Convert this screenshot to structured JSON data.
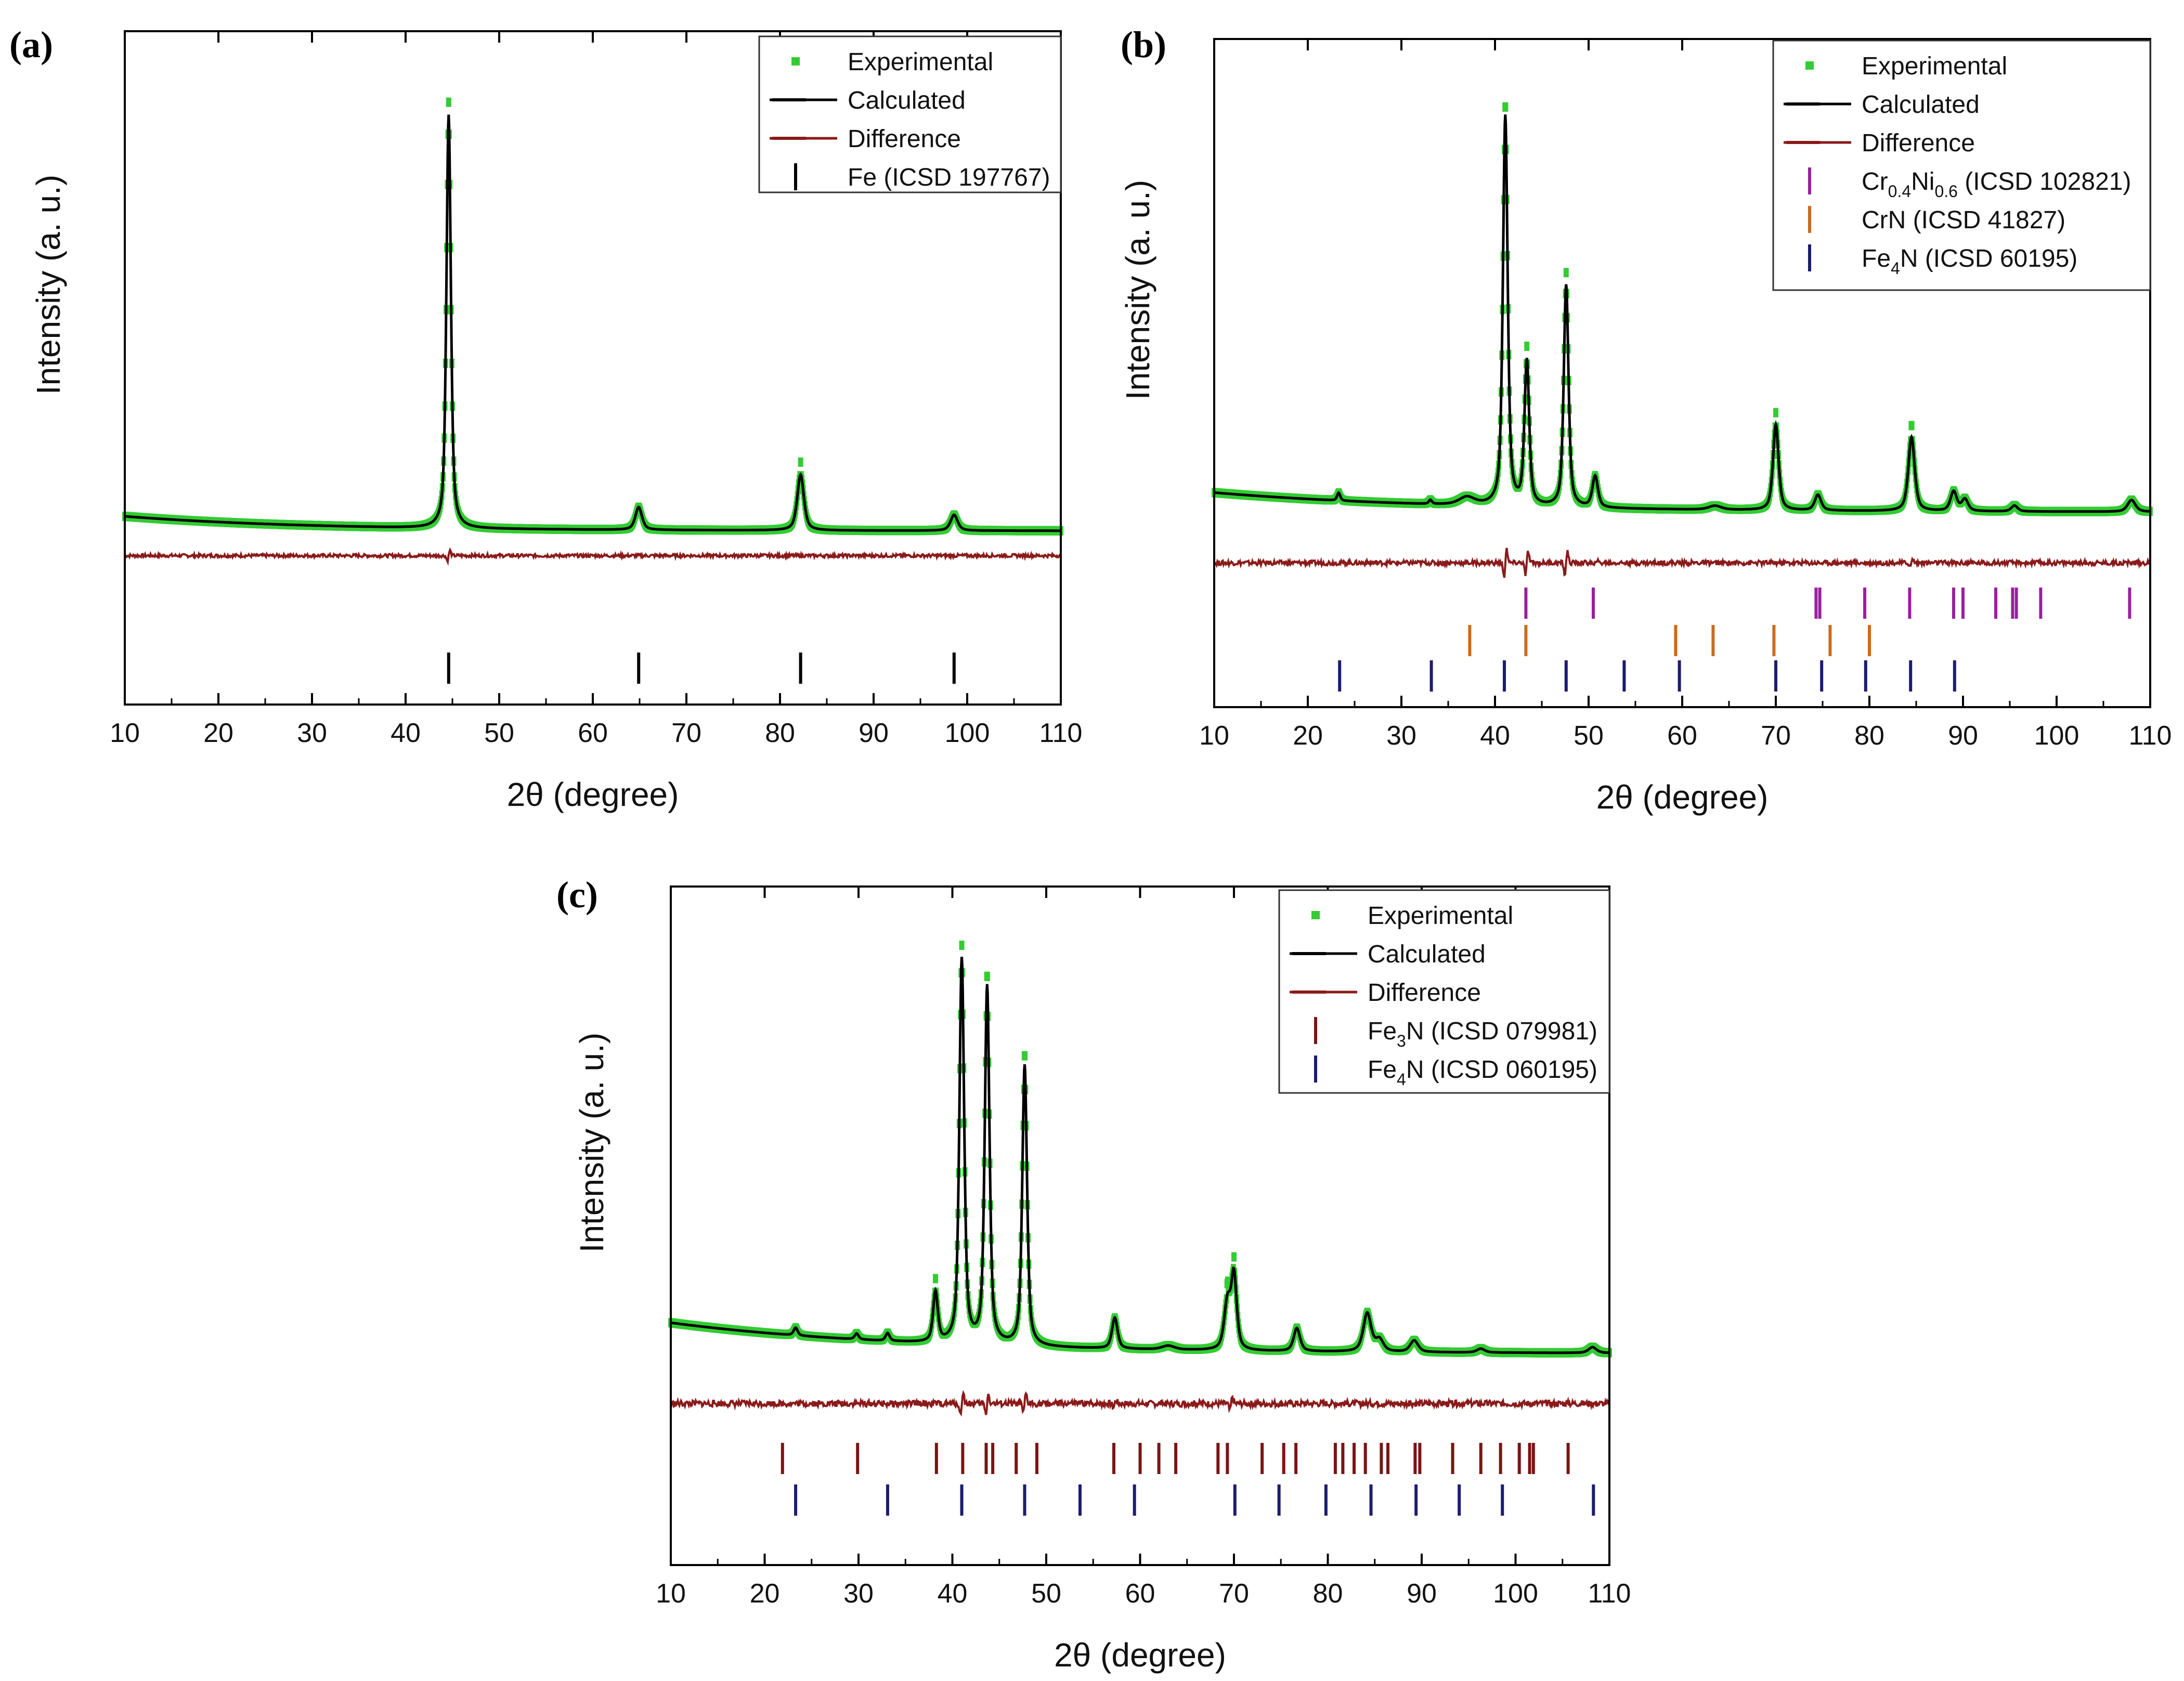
{
  "figure": {
    "background": "#ffffff",
    "colors": {
      "experimental": "#33cc33",
      "calculated": "#000000",
      "difference": "#8b1a1a",
      "fe_tick": "#000000",
      "crni_tick": "#9b1fa0",
      "crn_tick": "#cc6a1a",
      "fe4n_tick": "#1c1c6e",
      "fe3n_tick": "#7a1414"
    }
  },
  "chart_data": [
    {
      "type": "line",
      "panel": "(a)",
      "xlabel": "2θ (degree)",
      "ylabel": "Intensity (a. u.)",
      "xlim": [
        10,
        110
      ],
      "xticks": [
        "10",
        "20",
        "30",
        "40",
        "50",
        "60",
        "70",
        "80",
        "90",
        "100",
        "110"
      ],
      "ylim": [
        -0.42,
        1.12
      ],
      "legend_position": "top-right",
      "pattern": {
        "background": {
          "start": 0.035,
          "end": 0.0,
          "decay": 20
        },
        "peaks": [
          {
            "pos": 44.6,
            "height": 1.0,
            "width": 0.28
          },
          {
            "pos": 64.9,
            "height": 0.055,
            "width": 0.42
          },
          {
            "pos": 82.2,
            "height": 0.135,
            "width": 0.42
          },
          {
            "pos": 98.6,
            "height": 0.038,
            "width": 0.45
          }
        ],
        "exp_overshoot": 0.03,
        "difference_offset": -0.06,
        "difference_noise": 0.004,
        "difference_spikes": [
          {
            "pos": 44.6,
            "amp": 0.02
          }
        ]
      },
      "series": [
        {
          "name": "Experimental",
          "style": "dots",
          "color": "#33cc33"
        },
        {
          "name": "Calculated",
          "style": "line",
          "color": "#000000"
        },
        {
          "name": "Difference",
          "style": "line",
          "color": "#8b1a1a"
        }
      ],
      "reflections": [
        {
          "name": "Fe (ICSD 197767)",
          "color": "#000000",
          "positions": [
            44.6,
            64.9,
            82.2,
            98.6
          ]
        }
      ]
    },
    {
      "type": "line",
      "panel": "(b)",
      "xlabel": "2θ (degree)",
      "ylabel": "Intensity (a. u.)",
      "xlim": [
        10,
        110
      ],
      "xticks": [
        "10",
        "20",
        "30",
        "40",
        "50",
        "60",
        "70",
        "80",
        "90",
        "100",
        "110"
      ],
      "ylim": [
        -0.5,
        1.12
      ],
      "legend_position": "top-right",
      "pattern": {
        "background": {
          "start": 0.05,
          "end": 0.0,
          "decay": 25
        },
        "peaks": [
          {
            "pos": 23.3,
            "height": 0.02,
            "width": 0.2
          },
          {
            "pos": 33.1,
            "height": 0.01,
            "width": 0.2
          },
          {
            "pos": 37.0,
            "height": 0.02,
            "width": 1.0
          },
          {
            "pos": 41.1,
            "height": 1.0,
            "width": 0.3
          },
          {
            "pos": 43.4,
            "height": 0.37,
            "width": 0.3
          },
          {
            "pos": 47.6,
            "height": 0.57,
            "width": 0.3
          },
          {
            "pos": 50.7,
            "height": 0.08,
            "width": 0.35
          },
          {
            "pos": 63.5,
            "height": 0.01,
            "width": 0.8
          },
          {
            "pos": 70.0,
            "height": 0.22,
            "width": 0.35
          },
          {
            "pos": 74.5,
            "height": 0.04,
            "width": 0.4
          },
          {
            "pos": 84.5,
            "height": 0.19,
            "width": 0.4
          },
          {
            "pos": 89.0,
            "height": 0.05,
            "width": 0.4
          },
          {
            "pos": 90.2,
            "height": 0.03,
            "width": 0.4
          },
          {
            "pos": 95.5,
            "height": 0.015,
            "width": 0.4
          },
          {
            "pos": 108.0,
            "height": 0.03,
            "width": 0.5
          }
        ],
        "exp_overshoot": 0.03,
        "difference_offset": -0.13,
        "difference_noise": 0.006,
        "difference_spikes": [
          {
            "pos": 41.1,
            "amp": 0.06
          },
          {
            "pos": 43.4,
            "amp": 0.05
          },
          {
            "pos": 47.6,
            "amp": 0.05
          },
          {
            "pos": 50.7,
            "amp": 0.015
          },
          {
            "pos": 84.5,
            "amp": 0.015
          }
        ]
      },
      "series": [
        {
          "name": "Experimental",
          "style": "dots",
          "color": "#33cc33"
        },
        {
          "name": "Calculated",
          "style": "line",
          "color": "#000000"
        },
        {
          "name": "Difference",
          "style": "line",
          "color": "#8b1a1a"
        }
      ],
      "reflections": [
        {
          "name": "Cr0.4Ni0.6 (ICSD 102821)",
          "label_main": "Cr",
          "label_sub1": "0.4",
          "label_mid": "Ni",
          "label_sub2": "0.6",
          "label_rest": " (ICSD 102821)",
          "color": "#9b1fa0",
          "positions": [
            43.3,
            50.5,
            74.3,
            74.7,
            79.5,
            84.3,
            89.0,
            90.0,
            93.5,
            95.3,
            95.7,
            98.3,
            107.8
          ]
        },
        {
          "name": "CrN (ICSD 41827)",
          "color": "#cc6a1a",
          "positions": [
            37.3,
            43.3,
            59.3,
            63.3,
            69.8,
            75.8,
            80.0
          ]
        },
        {
          "name": "Fe4N (ICSD 60195)",
          "label_main": "Fe",
          "label_sub1": "4",
          "label_rest": "N (ICSD 60195)",
          "color": "#1c1c6e",
          "positions": [
            23.4,
            33.2,
            41.0,
            47.6,
            53.8,
            59.7,
            70.0,
            74.9,
            79.6,
            84.4,
            89.1
          ]
        }
      ]
    },
    {
      "type": "line",
      "panel": "(c)",
      "xlabel": "2θ (degree)",
      "ylabel": "Intensity (a. u.)",
      "xlim": [
        10,
        110
      ],
      "xticks": [
        "10",
        "20",
        "30",
        "40",
        "50",
        "60",
        "70",
        "80",
        "90",
        "100",
        "110"
      ],
      "ylim": [
        -0.55,
        1.12
      ],
      "legend_position": "top-right",
      "pattern": {
        "background": {
          "start": 0.08,
          "end": 0.0,
          "decay": 25
        },
        "peaks": [
          {
            "pos": 23.3,
            "height": 0.02,
            "width": 0.25
          },
          {
            "pos": 29.8,
            "height": 0.015,
            "width": 0.25
          },
          {
            "pos": 33.1,
            "height": 0.02,
            "width": 0.25
          },
          {
            "pos": 38.2,
            "height": 0.13,
            "width": 0.3
          },
          {
            "pos": 41.0,
            "height": 1.0,
            "width": 0.3
          },
          {
            "pos": 43.7,
            "height": 0.93,
            "width": 0.3
          },
          {
            "pos": 47.7,
            "height": 0.73,
            "width": 0.3
          },
          {
            "pos": 57.3,
            "height": 0.08,
            "width": 0.35
          },
          {
            "pos": 63.0,
            "height": 0.01,
            "width": 0.8
          },
          {
            "pos": 69.3,
            "height": 0.12,
            "width": 0.4
          },
          {
            "pos": 70.0,
            "height": 0.19,
            "width": 0.35
          },
          {
            "pos": 76.7,
            "height": 0.06,
            "width": 0.4
          },
          {
            "pos": 84.2,
            "height": 0.1,
            "width": 0.5
          },
          {
            "pos": 85.5,
            "height": 0.03,
            "width": 0.5
          },
          {
            "pos": 89.2,
            "height": 0.03,
            "width": 0.5
          },
          {
            "pos": 96.3,
            "height": 0.01,
            "width": 0.5
          },
          {
            "pos": 108.2,
            "height": 0.015,
            "width": 0.5
          }
        ],
        "exp_overshoot": 0.03,
        "difference_offset": -0.13,
        "difference_noise": 0.008,
        "difference_spikes": [
          {
            "pos": 41.0,
            "amp": 0.05
          },
          {
            "pos": 43.7,
            "amp": 0.04
          },
          {
            "pos": 47.7,
            "amp": 0.04
          },
          {
            "pos": 69.7,
            "amp": 0.03
          },
          {
            "pos": 57.3,
            "amp": 0.015
          }
        ]
      },
      "series": [
        {
          "name": "Experimental",
          "style": "dots",
          "color": "#33cc33"
        },
        {
          "name": "Calculated",
          "style": "line",
          "color": "#000000"
        },
        {
          "name": "Difference",
          "style": "line",
          "color": "#8b1a1a"
        }
      ],
      "reflections": [
        {
          "name": "Fe3N (ICSD 079981)",
          "label_main": "Fe",
          "label_sub1": "3",
          "label_rest": "N (ICSD 079981)",
          "color": "#7a1414",
          "positions": [
            21.9,
            29.9,
            38.3,
            41.1,
            43.6,
            44.3,
            46.8,
            49.0,
            57.2,
            60.0,
            62.0,
            63.8,
            68.3,
            69.3,
            73.0,
            75.3,
            76.6,
            80.8,
            81.6,
            82.8,
            84.0,
            85.7,
            86.4,
            89.3,
            89.8,
            93.3,
            96.3,
            98.4,
            100.4,
            101.5,
            101.9,
            105.6
          ]
        },
        {
          "name": "Fe4N (ICSD 060195)",
          "label_main": "Fe",
          "label_sub1": "4",
          "label_rest": "N (ICSD 060195)",
          "color": "#1c1c6e",
          "positions": [
            23.3,
            33.1,
            41.0,
            47.7,
            53.6,
            59.4,
            70.1,
            74.8,
            79.8,
            84.6,
            89.4,
            94.0,
            98.6,
            108.3
          ]
        }
      ]
    }
  ]
}
